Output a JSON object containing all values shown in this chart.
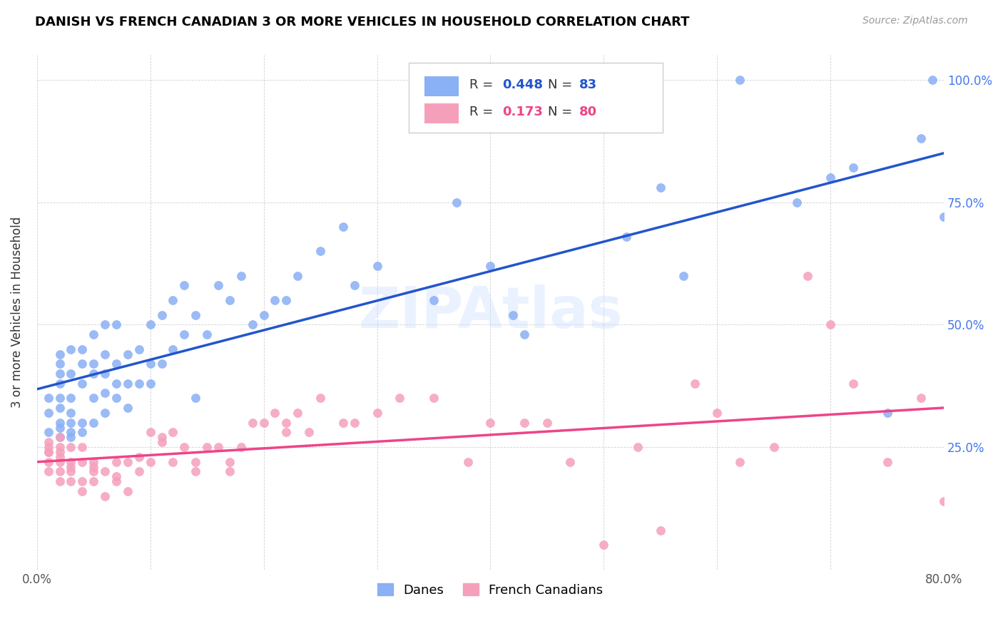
{
  "title": "DANISH VS FRENCH CANADIAN 3 OR MORE VEHICLES IN HOUSEHOLD CORRELATION CHART",
  "source": "Source: ZipAtlas.com",
  "ylabel_label": "3 or more Vehicles in Household",
  "x_min": 0.0,
  "x_max": 0.8,
  "y_min": 0.0,
  "y_max": 1.05,
  "danes_R": 0.448,
  "danes_N": 83,
  "french_R": 0.173,
  "french_N": 80,
  "danes_color": "#8ab0f5",
  "french_color": "#f5a0bb",
  "danes_line_color": "#2255cc",
  "french_line_color": "#ee4488",
  "danes_scatter_x": [
    0.01,
    0.01,
    0.01,
    0.02,
    0.02,
    0.02,
    0.02,
    0.02,
    0.02,
    0.02,
    0.02,
    0.02,
    0.03,
    0.03,
    0.03,
    0.03,
    0.03,
    0.03,
    0.03,
    0.04,
    0.04,
    0.04,
    0.04,
    0.04,
    0.05,
    0.05,
    0.05,
    0.05,
    0.05,
    0.06,
    0.06,
    0.06,
    0.06,
    0.06,
    0.07,
    0.07,
    0.07,
    0.07,
    0.08,
    0.08,
    0.08,
    0.09,
    0.09,
    0.1,
    0.1,
    0.1,
    0.11,
    0.11,
    0.12,
    0.12,
    0.13,
    0.13,
    0.14,
    0.14,
    0.15,
    0.16,
    0.17,
    0.18,
    0.19,
    0.2,
    0.21,
    0.22,
    0.23,
    0.25,
    0.27,
    0.28,
    0.3,
    0.35,
    0.37,
    0.4,
    0.42,
    0.43,
    0.52,
    0.55,
    0.57,
    0.62,
    0.67,
    0.7,
    0.72,
    0.75,
    0.78,
    0.79,
    0.8
  ],
  "danes_scatter_y": [
    0.28,
    0.32,
    0.35,
    0.27,
    0.29,
    0.3,
    0.33,
    0.35,
    0.38,
    0.4,
    0.42,
    0.44,
    0.27,
    0.28,
    0.3,
    0.32,
    0.35,
    0.4,
    0.45,
    0.28,
    0.3,
    0.38,
    0.42,
    0.45,
    0.3,
    0.35,
    0.4,
    0.42,
    0.48,
    0.32,
    0.36,
    0.4,
    0.44,
    0.5,
    0.35,
    0.38,
    0.42,
    0.5,
    0.33,
    0.38,
    0.44,
    0.38,
    0.45,
    0.38,
    0.42,
    0.5,
    0.42,
    0.52,
    0.45,
    0.55,
    0.48,
    0.58,
    0.35,
    0.52,
    0.48,
    0.58,
    0.55,
    0.6,
    0.5,
    0.52,
    0.55,
    0.55,
    0.6,
    0.65,
    0.7,
    0.58,
    0.62,
    0.55,
    0.75,
    0.62,
    0.52,
    0.48,
    0.68,
    0.78,
    0.6,
    1.0,
    0.75,
    0.8,
    0.82,
    0.32,
    0.88,
    1.0,
    0.72
  ],
  "french_scatter_x": [
    0.01,
    0.01,
    0.01,
    0.01,
    0.01,
    0.02,
    0.02,
    0.02,
    0.02,
    0.02,
    0.02,
    0.03,
    0.03,
    0.03,
    0.03,
    0.04,
    0.04,
    0.04,
    0.04,
    0.05,
    0.05,
    0.05,
    0.06,
    0.06,
    0.07,
    0.07,
    0.08,
    0.08,
    0.09,
    0.1,
    0.1,
    0.11,
    0.12,
    0.12,
    0.13,
    0.14,
    0.15,
    0.16,
    0.17,
    0.18,
    0.19,
    0.2,
    0.21,
    0.22,
    0.23,
    0.24,
    0.25,
    0.27,
    0.28,
    0.3,
    0.32,
    0.35,
    0.38,
    0.4,
    0.43,
    0.45,
    0.47,
    0.5,
    0.53,
    0.55,
    0.58,
    0.6,
    0.62,
    0.65,
    0.68,
    0.7,
    0.72,
    0.75,
    0.78,
    0.8,
    0.01,
    0.02,
    0.03,
    0.05,
    0.07,
    0.09,
    0.11,
    0.14,
    0.17,
    0.22
  ],
  "french_scatter_y": [
    0.2,
    0.22,
    0.24,
    0.25,
    0.26,
    0.18,
    0.2,
    0.22,
    0.24,
    0.25,
    0.27,
    0.18,
    0.2,
    0.22,
    0.25,
    0.16,
    0.18,
    0.22,
    0.25,
    0.18,
    0.2,
    0.22,
    0.15,
    0.2,
    0.18,
    0.22,
    0.16,
    0.22,
    0.2,
    0.22,
    0.28,
    0.26,
    0.22,
    0.28,
    0.25,
    0.22,
    0.25,
    0.25,
    0.2,
    0.25,
    0.3,
    0.3,
    0.32,
    0.3,
    0.32,
    0.28,
    0.35,
    0.3,
    0.3,
    0.32,
    0.35,
    0.35,
    0.22,
    0.3,
    0.3,
    0.3,
    0.22,
    0.05,
    0.25,
    0.08,
    0.38,
    0.32,
    0.22,
    0.25,
    0.6,
    0.5,
    0.38,
    0.22,
    0.35,
    0.14,
    0.24,
    0.23,
    0.21,
    0.21,
    0.19,
    0.23,
    0.27,
    0.2,
    0.22,
    0.28
  ]
}
